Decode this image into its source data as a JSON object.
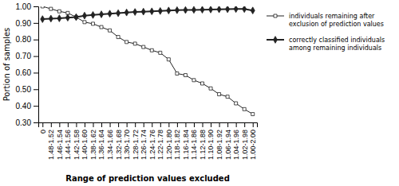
{
  "chart_data": {
    "type": "line",
    "x_label": "Range of prediction values excluded",
    "y_label": "Portion of samples",
    "categories": [
      "0",
      "1.48-1.52",
      "1.46-1.54",
      "1.44-1.56",
      "1.42-1.58",
      "1.40-1.60",
      "1.38-1.62",
      "1.36-1.64",
      "1.34-1.66",
      "1.32-1.68",
      "1.30-1.70",
      "1.28-1.72",
      "1.26-1.74",
      "1.24-1.76",
      "1.22-1.78",
      "1.20-1.80",
      "1.18-1.82",
      "1.16-1.84",
      "1.14-1.86",
      "1.12-1.88",
      "1.10-1.90",
      "1.08-1.92",
      "1.06-1.94",
      "1.04-1.96",
      "1.02-1.98",
      "1.00-2.00"
    ],
    "series": [
      {
        "name": "individuals remaining after\nexclusion of prediction values",
        "color": "#222222",
        "marker": "square",
        "values": [
          1.0,
          0.985,
          0.97,
          0.96,
          0.935,
          0.905,
          0.895,
          0.875,
          0.855,
          0.815,
          0.785,
          0.775,
          0.755,
          0.735,
          0.72,
          0.68,
          0.595,
          0.585,
          0.555,
          0.535,
          0.505,
          0.47,
          0.455,
          0.415,
          0.38,
          0.35
        ]
      },
      {
        "name": "correctly classified individuals\namong remaining individuals",
        "color": "#222222",
        "marker": "diamond",
        "values": [
          0.923,
          0.926,
          0.928,
          0.932,
          0.935,
          0.944,
          0.948,
          0.952,
          0.956,
          0.959,
          0.963,
          0.966,
          0.968,
          0.97,
          0.972,
          0.975,
          0.977,
          0.978,
          0.979,
          0.98,
          0.981,
          0.982,
          0.983,
          0.984,
          0.984,
          0.975
        ]
      }
    ],
    "ylim": [
      0.3,
      1.0
    ],
    "yticks": [
      {
        "value": 0.3,
        "label": "0.30"
      },
      {
        "value": 0.4,
        "label": "0.40"
      },
      {
        "value": 0.5,
        "label": "0.50"
      },
      {
        "value": 0.6,
        "label": "0.60"
      },
      {
        "value": 0.7,
        "label": "0.70"
      },
      {
        "value": 0.8,
        "label": "0.80"
      },
      {
        "value": 0.9,
        "label": "0.90"
      },
      {
        "value": 1.0,
        "label": "1.00"
      }
    ],
    "grid": false,
    "legend": "upper right"
  }
}
